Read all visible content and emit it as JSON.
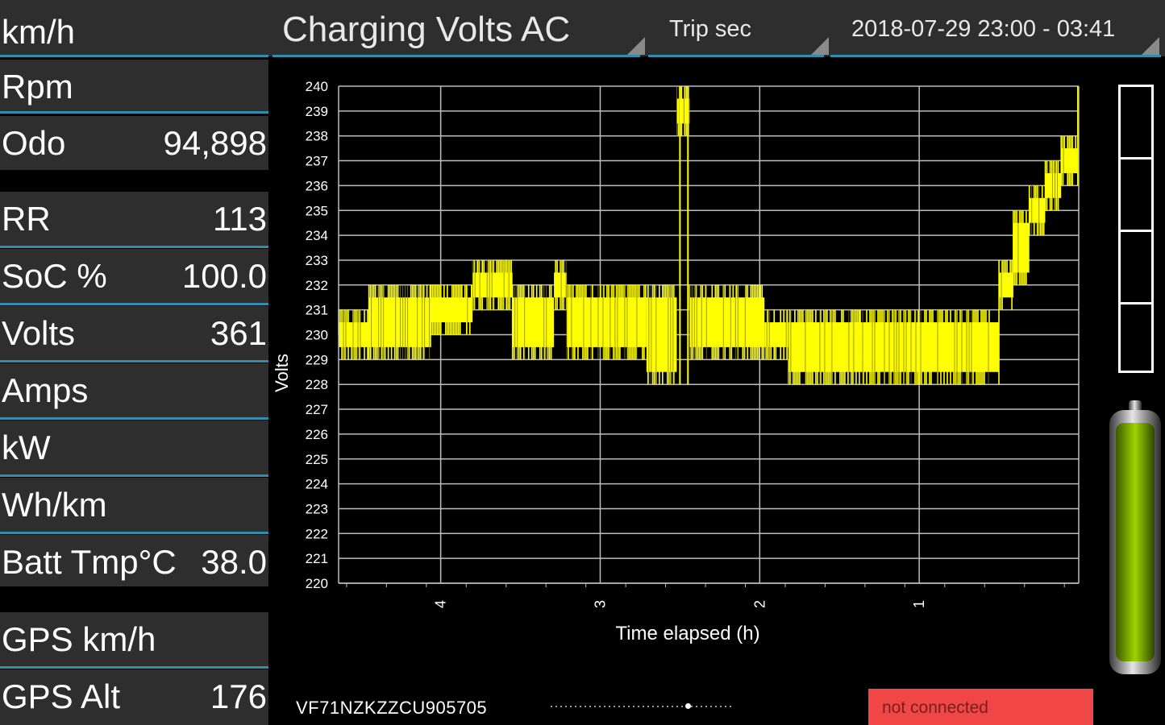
{
  "header": {
    "speed_unit": "km/h",
    "chart_title": "Charging Volts AC",
    "trip_selector": "Trip sec",
    "date_range": "2018-07-29 23:00 - 03:41"
  },
  "sidebar": {
    "rows": [
      {
        "label": "Rpm",
        "value": ""
      },
      {
        "label": "Odo",
        "value": "94,898"
      },
      {
        "label": "RR",
        "value": "113"
      },
      {
        "label": "SoC %",
        "value": "100.0"
      },
      {
        "label": "Volts",
        "value": "361"
      },
      {
        "label": "Amps",
        "value": ""
      },
      {
        "label": "kW",
        "value": ""
      },
      {
        "label": "Wh/km",
        "value": ""
      },
      {
        "label": "Batt Tmp°C",
        "value": "38.0"
      },
      {
        "label": "GPS km/h",
        "value": ""
      },
      {
        "label": "GPS Alt",
        "value": "176"
      }
    ]
  },
  "chart_data": {
    "type": "line",
    "ylabel": "Volts",
    "xlabel": "Time elapsed (h)",
    "ylim": [
      220,
      240
    ],
    "xlim": [
      4.64,
      0
    ],
    "yticks": [
      220,
      221,
      222,
      223,
      224,
      225,
      226,
      227,
      228,
      229,
      230,
      231,
      232,
      233,
      234,
      235,
      236,
      237,
      238,
      239,
      240
    ],
    "xticks": [
      "4",
      "3",
      "2",
      "1"
    ],
    "xtick_values": [
      4,
      3,
      2,
      1
    ],
    "grid": true,
    "series": [
      {
        "color": "#ffff00",
        "bands": [
          {
            "x0": 4.64,
            "x1": 4.45,
            "ymin": 229,
            "ymax": 231
          },
          {
            "x0": 4.45,
            "x1": 4.06,
            "ymin": 229,
            "ymax": 232
          },
          {
            "x0": 4.06,
            "x1": 3.8,
            "ymin": 230,
            "ymax": 232
          },
          {
            "x0": 3.8,
            "x1": 3.55,
            "ymin": 231,
            "ymax": 233
          },
          {
            "x0": 3.55,
            "x1": 3.29,
            "ymin": 229,
            "ymax": 232
          },
          {
            "x0": 3.29,
            "x1": 3.21,
            "ymin": 231,
            "ymax": 233
          },
          {
            "x0": 3.21,
            "x1": 2.71,
            "ymin": 229,
            "ymax": 232
          },
          {
            "x0": 2.71,
            "x1": 2.52,
            "ymin": 228,
            "ymax": 232
          },
          {
            "x0": 2.52,
            "x1": 2.44,
            "ymin": 238,
            "ymax": 240
          },
          {
            "x0": 2.44,
            "x1": 1.97,
            "ymin": 229,
            "ymax": 232
          },
          {
            "x0": 1.97,
            "x1": 1.82,
            "ymin": 229,
            "ymax": 231
          },
          {
            "x0": 1.82,
            "x1": 1.37,
            "ymin": 228,
            "ymax": 231
          },
          {
            "x0": 1.37,
            "x1": 0.5,
            "ymin": 228,
            "ymax": 231
          },
          {
            "x0": 0.5,
            "x1": 0.41,
            "ymin": 231,
            "ymax": 233
          },
          {
            "x0": 0.41,
            "x1": 0.31,
            "ymin": 232,
            "ymax": 235
          },
          {
            "x0": 0.31,
            "x1": 0.21,
            "ymin": 234,
            "ymax": 236
          },
          {
            "x0": 0.21,
            "x1": 0.11,
            "ymin": 235,
            "ymax": 237
          },
          {
            "x0": 0.11,
            "x1": 0.01,
            "ymin": 236,
            "ymax": 238
          }
        ],
        "spikes": [
          {
            "x": 2.5,
            "ymin": 228,
            "ymax": 240
          },
          {
            "x": 2.45,
            "ymin": 228,
            "ymax": 240
          },
          {
            "x": 0.005,
            "ymin": 236,
            "ymax": 240
          }
        ]
      }
    ]
  },
  "gauge": {
    "segments": 4,
    "level": 0
  },
  "battery": {
    "level": 1.0,
    "color": "#7fb800"
  },
  "footer": {
    "vin": "VF71NZKZZCU905705",
    "connection_status": "not connected",
    "status_color": "#f04646"
  }
}
